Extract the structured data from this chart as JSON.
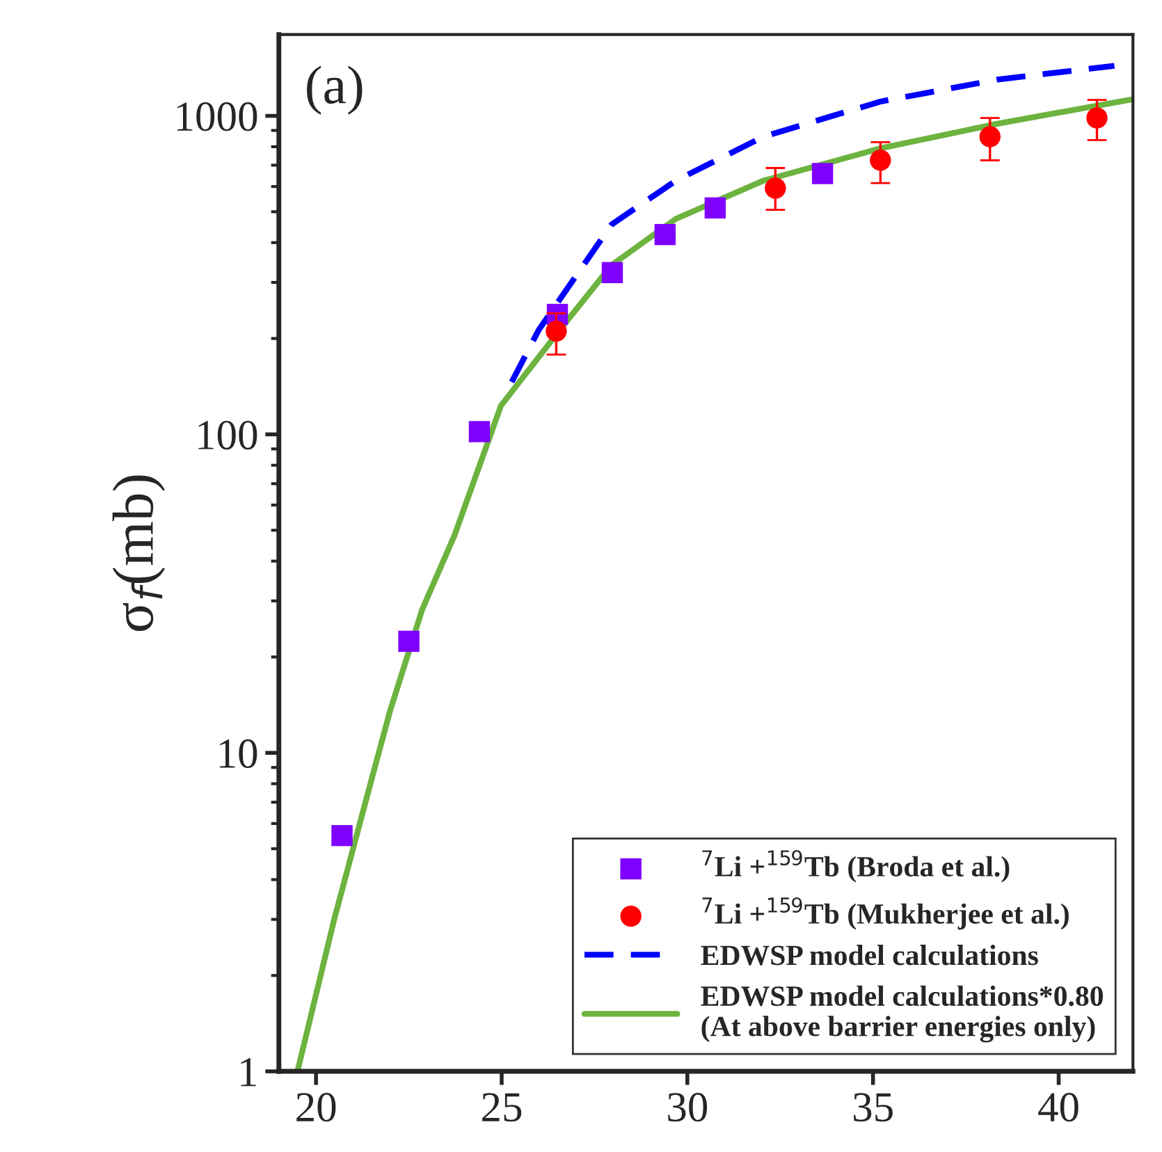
{
  "chart_data": {
    "type": "scatter",
    "ylabel": "σ$_{f}$(mb)",
    "annotations": [
      "(a)"
    ],
    "log": "y",
    "xlim": [
      19,
      42
    ],
    "ylim": [
      1,
      1800
    ],
    "xticks": [
      20,
      25,
      30,
      35,
      40
    ],
    "yticks": [
      1,
      10,
      100,
      1000
    ],
    "grid": false,
    "legend": "bottom right",
    "series": [
      {
        "name": "$^{7}$Li +$^{159}$Tb (Broda et al.)",
        "marker": "square",
        "color": "#7f00ff",
        "x": [
          20.7,
          22.5,
          24.4,
          26.5,
          27.98,
          29.4,
          30.75,
          33.64
        ],
        "values": [
          5.5,
          22.4,
          102,
          238,
          322,
          424,
          514,
          659
        ]
      },
      {
        "name": "$^{7}$Li +$^{159}$Tb (Mukherjee et al.)",
        "marker": "circle",
        "color": "#ff0000",
        "x": [
          26.47,
          32.37,
          35.2,
          38.15,
          41.03
        ],
        "values": [
          211,
          593,
          726,
          860,
          985
        ],
        "errors": [
          [
            178,
            240
          ],
          [
            507,
            686
          ],
          [
            615,
            827
          ],
          [
            725,
            985
          ],
          [
            839,
            1122
          ]
        ]
      },
      {
        "name": "EDWSP model calculations",
        "type": "line",
        "line_style": "dashed",
        "color": "#0000ff",
        "x": [
          25.27,
          26.0,
          27.96,
          29.7,
          32.05,
          35.2,
          38.35,
          41.5
        ],
        "values": [
          146,
          213,
          456,
          627,
          860,
          1109,
          1300,
          1436
        ]
      },
      {
        "name": "EDWSP model calculations*0.80\n(At above barrier energies only)",
        "type": "line",
        "line_style": "solid",
        "color": "#6db33f",
        "x": [
          19.5,
          20.49,
          21.49,
          21.99,
          22.86,
          23.73,
          24.98,
          26.69,
          27.96,
          29.69,
          32.05,
          35.2,
          38.35,
          42.0
        ],
        "values": [
          1,
          3.0,
          8.2,
          13.5,
          28.2,
          48.2,
          123,
          222,
          340,
          475,
          626,
          791,
          945,
          1128
        ]
      }
    ]
  }
}
